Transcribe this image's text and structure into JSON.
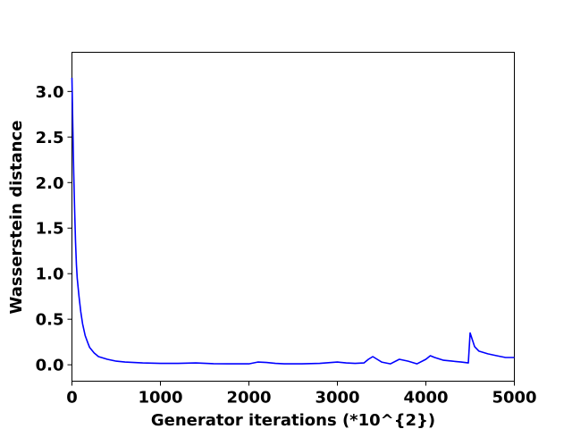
{
  "chart_data": {
    "type": "line",
    "title": "",
    "xlabel": "Generator iterations (*10^{2})",
    "ylabel": "Wasserstein distance",
    "xlim": [
      0,
      5000
    ],
    "ylim": [
      -0.18,
      3.43
    ],
    "xticks": [
      0,
      1000,
      2000,
      3000,
      4000,
      5000
    ],
    "yticks": [
      0.0,
      0.5,
      1.0,
      1.5,
      2.0,
      2.5,
      3.0
    ],
    "xtick_labels": [
      "0",
      "1000",
      "2000",
      "3000",
      "4000",
      "5000"
    ],
    "ytick_labels": [
      "0.0",
      "0.5",
      "1.0",
      "1.5",
      "2.0",
      "2.5",
      "3.0"
    ],
    "grid": false,
    "legend": "none",
    "series": [
      {
        "color": "#0000ff",
        "x": [
          0,
          10,
          20,
          30,
          40,
          50,
          60,
          80,
          100,
          120,
          150,
          180,
          200,
          250,
          300,
          400,
          500,
          600,
          800,
          1000,
          1200,
          1400,
          1600,
          1800,
          2000,
          2100,
          2200,
          2300,
          2400,
          2600,
          2800,
          3000,
          3100,
          3200,
          3300,
          3350,
          3400,
          3450,
          3500,
          3600,
          3700,
          3800,
          3900,
          4000,
          4050,
          4100,
          4200,
          4300,
          4400,
          4480,
          4500,
          4510,
          4550,
          4600,
          4700,
          4800,
          4900,
          5000
        ],
        "y": [
          3.15,
          2.6,
          2.1,
          1.7,
          1.35,
          1.1,
          0.95,
          0.75,
          0.58,
          0.45,
          0.32,
          0.24,
          0.19,
          0.13,
          0.09,
          0.06,
          0.04,
          0.03,
          0.02,
          0.015,
          0.015,
          0.02,
          0.012,
          0.01,
          0.01,
          0.03,
          0.025,
          0.015,
          0.01,
          0.01,
          0.015,
          0.03,
          0.02,
          0.015,
          0.02,
          0.06,
          0.09,
          0.06,
          0.03,
          0.01,
          0.06,
          0.04,
          0.01,
          0.06,
          0.1,
          0.08,
          0.05,
          0.04,
          0.03,
          0.02,
          0.35,
          0.32,
          0.2,
          0.15,
          0.12,
          0.1,
          0.08,
          0.08
        ]
      }
    ]
  }
}
